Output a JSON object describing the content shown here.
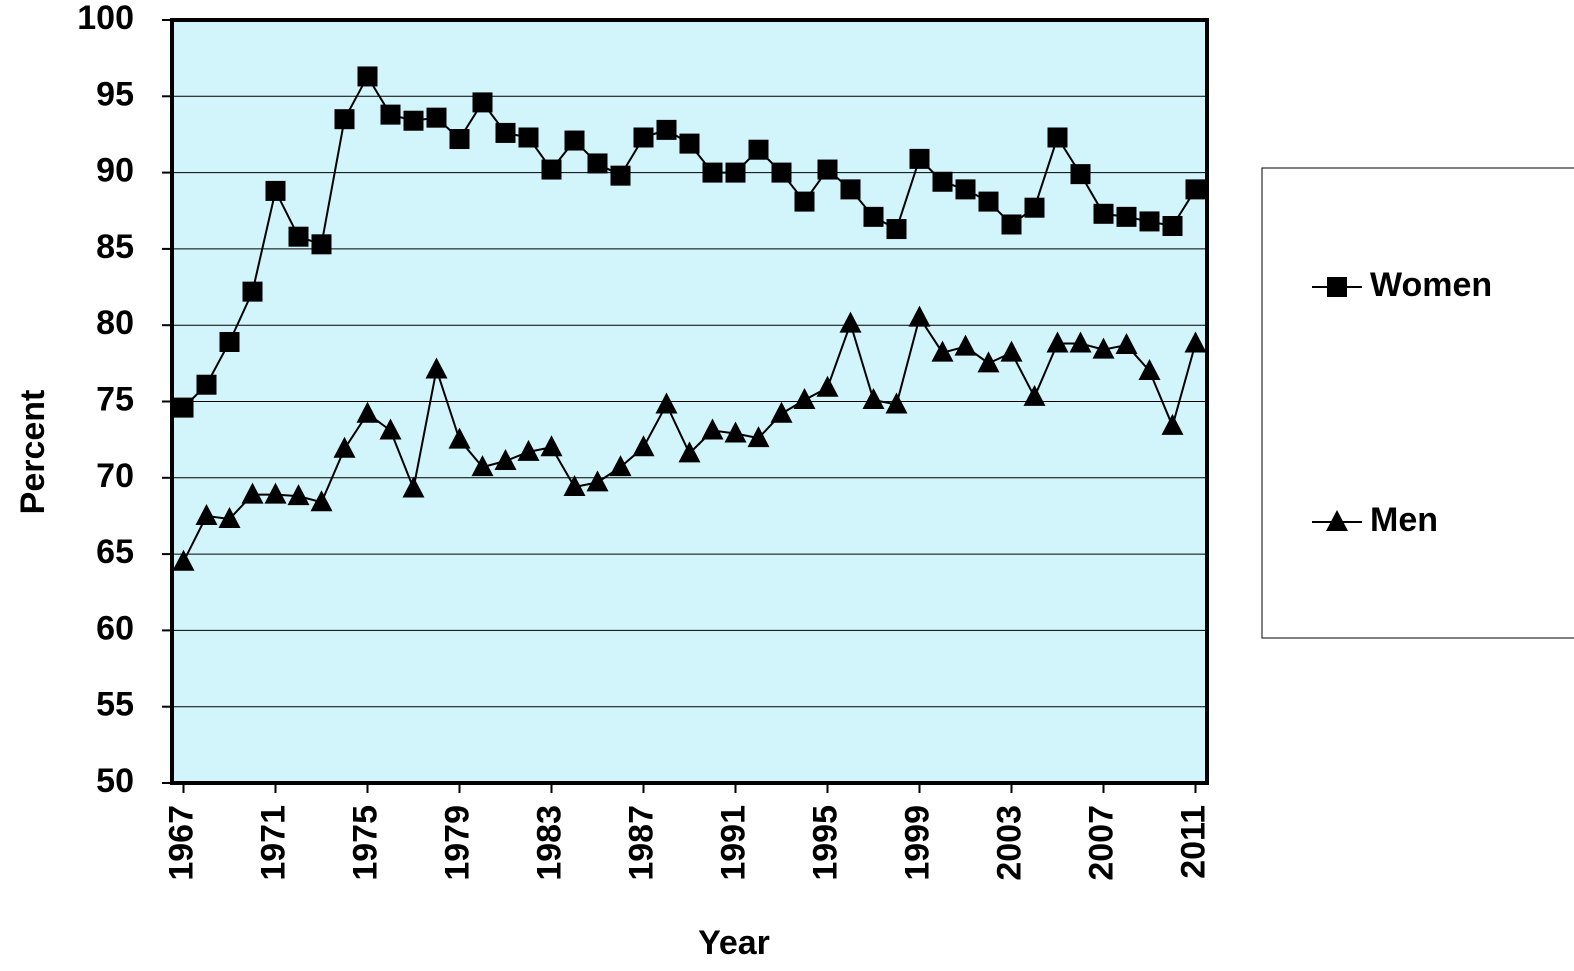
{
  "chart_data": {
    "type": "line",
    "x_label": "Year",
    "y_label": "Percent",
    "x": [
      1967,
      1968,
      1969,
      1970,
      1971,
      1972,
      1973,
      1974,
      1975,
      1976,
      1977,
      1978,
      1979,
      1980,
      1981,
      1982,
      1983,
      1984,
      1985,
      1986,
      1987,
      1988,
      1989,
      1990,
      1991,
      1992,
      1993,
      1994,
      1995,
      1996,
      1997,
      1998,
      1999,
      2000,
      2001,
      2002,
      2003,
      2004,
      2005,
      2006,
      2007,
      2008,
      2009,
      2010,
      2011
    ],
    "series": [
      {
        "name": "Women",
        "color": "#000000",
        "marker": "square",
        "values": [
          74.6,
          76.1,
          78.9,
          82.2,
          88.8,
          85.8,
          85.3,
          93.5,
          96.3,
          93.8,
          93.4,
          93.6,
          92.2,
          94.6,
          92.6,
          92.3,
          90.2,
          92.1,
          90.6,
          89.8,
          92.3,
          92.8,
          91.9,
          90.0,
          90.0,
          91.5,
          90.0,
          88.1,
          90.2,
          88.9,
          87.1,
          86.3,
          90.9,
          89.4,
          88.9,
          88.1,
          86.6,
          87.7,
          92.3,
          89.9,
          87.3,
          87.1,
          86.8,
          86.5,
          88.9
        ]
      },
      {
        "name": "Men",
        "color": "#000000",
        "marker": "triangle",
        "values": [
          64.5,
          67.5,
          67.3,
          68.9,
          68.9,
          68.8,
          68.4,
          71.9,
          74.2,
          73.1,
          69.3,
          77.1,
          72.5,
          70.7,
          71.1,
          71.7,
          72.0,
          69.4,
          69.7,
          70.7,
          72.0,
          74.8,
          71.6,
          73.1,
          72.9,
          72.6,
          74.2,
          75.1,
          75.9,
          80.1,
          75.1,
          74.8,
          80.5,
          78.2,
          78.6,
          77.5,
          78.2,
          75.3,
          78.8,
          78.8,
          78.4,
          78.7,
          77.0,
          73.4,
          78.8
        ]
      }
    ],
    "xlim": [
      1966.5,
      2011.5
    ],
    "xticks": [
      1967,
      1971,
      1975,
      1979,
      1983,
      1987,
      1991,
      1995,
      1999,
      2003,
      2007,
      2011
    ],
    "ylim": [
      50,
      100
    ],
    "yticks": [
      50,
      55,
      60,
      65,
      70,
      75,
      80,
      85,
      90,
      95,
      100
    ],
    "grid": true,
    "plot_background": "#d2f5fb",
    "legend": "right"
  }
}
